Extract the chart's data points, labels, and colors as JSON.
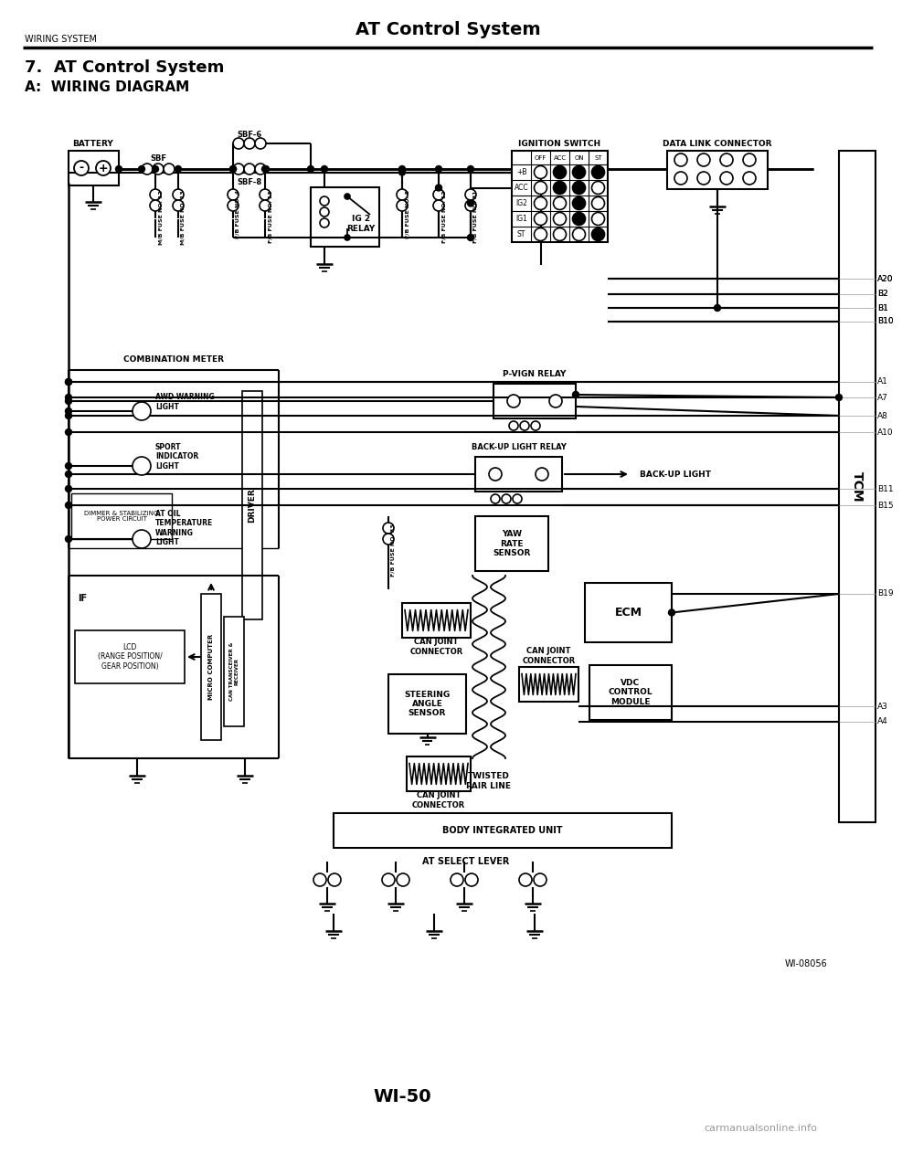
{
  "page_title": "AT Control System",
  "header_left": "WIRING SYSTEM",
  "section_title": "7.  AT Control System",
  "subsection_title": "A:  WIRING DIAGRAM",
  "diagram_id": "WI-08056",
  "page_number": "WI-50",
  "watermark": "carmanualsonline.info",
  "bg_color": "#ffffff",
  "tcm_pins": [
    "A20",
    "B2",
    "B1",
    "B10",
    "A1",
    "A7",
    "A8",
    "A10",
    "B11",
    "B15",
    "B19",
    "A3",
    "A4"
  ],
  "ign_rows": [
    "+B",
    "ACC",
    "IG2",
    "IG1",
    "ST"
  ],
  "ign_cols": [
    "OFF",
    "ACC",
    "ON",
    "ST"
  ],
  "row_filled": {
    "+B": [
      false,
      true,
      true,
      true
    ],
    "ACC": [
      false,
      true,
      true,
      false
    ],
    "IG2": [
      false,
      false,
      true,
      false
    ],
    "IG1": [
      false,
      false,
      true,
      false
    ],
    "ST": [
      false,
      false,
      false,
      true
    ]
  }
}
